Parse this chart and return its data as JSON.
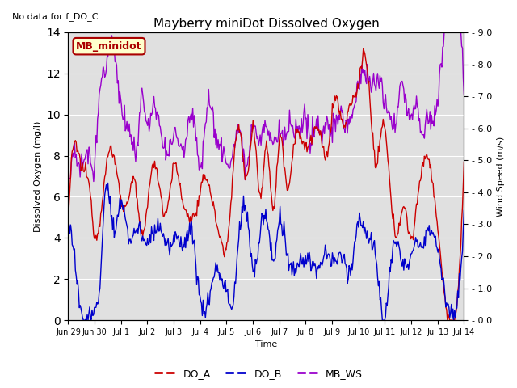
{
  "title": "Mayberry miniDot Dissolved Oxygen",
  "top_left_text": "No data for f_DO_C",
  "legend_box_text": "MB_minidot",
  "legend_box_facecolor": "#ffffcc",
  "legend_box_edgecolor": "#aa0000",
  "ylabel_left": "Dissolved Oxygen (mg/l)",
  "ylabel_right": "Wind Speed (m/s)",
  "xlabel": "Time",
  "ylim_left": [
    0,
    14
  ],
  "ylim_right": [
    0.0,
    9.0
  ],
  "yticks_left": [
    0,
    2,
    4,
    6,
    8,
    10,
    12,
    14
  ],
  "yticks_right_vals": [
    0.0,
    1.0,
    2.0,
    3.0,
    4.0,
    5.0,
    6.0,
    7.0,
    8.0,
    9.0
  ],
  "yticks_right_labels": [
    "0.0",
    "1.0",
    "2.0",
    "3.0",
    "4.0",
    "5.0",
    "6.0",
    "7.0",
    "8.0",
    "9.0"
  ],
  "color_DO_A": "#cc0000",
  "color_DO_B": "#0000cc",
  "color_MB_WS": "#9900cc",
  "line_width": 1.0,
  "bg_color": "#e0e0e0",
  "fig_bg": "#ffffff",
  "grid_color": "#ffffff",
  "xtick_labels": [
    "Jun 29",
    "Jun 30",
    "Jul 1",
    "Jul 2",
    "Jul 3",
    "Jul 4",
    "Jul 5",
    "Jul 6",
    "Jul 7",
    "Jul 8",
    "Jul 9",
    "Jul 10",
    "Jul 11",
    "Jul 12",
    "Jul 13",
    "Jul 14"
  ],
  "num_points": 500
}
